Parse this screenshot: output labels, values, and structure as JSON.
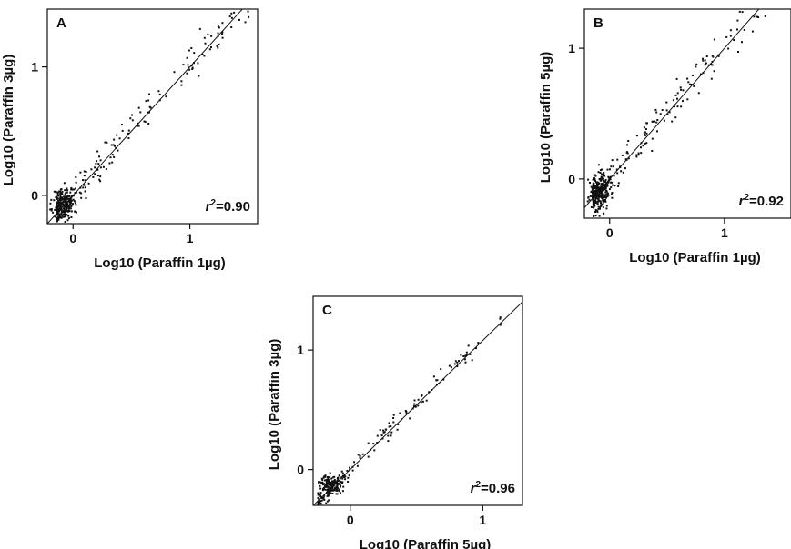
{
  "chart_data": [
    {
      "type": "scatter",
      "panel": "A",
      "xlabel": "Log10 (Paraffin 1µg)",
      "ylabel": "Log10 (Paraffin 3µg)",
      "xlim": [
        -0.22,
        1.58
      ],
      "ylim": [
        -0.22,
        1.45
      ],
      "xticks": [
        0,
        1
      ],
      "yticks": [
        0,
        1
      ],
      "r2_prefix": "r",
      "r2_sup": "2",
      "r2_value": "=0.90",
      "line": {
        "slope": 1,
        "intercept": 0
      },
      "seed": 11,
      "cluster": {
        "cx": -0.09,
        "cy": -0.06,
        "sx": 0.045,
        "sy": 0.06,
        "n": 210
      },
      "spread": {
        "n": 210,
        "xmin": -0.15,
        "xmax": 1.5,
        "noise": 0.07,
        "bias": 0.05
      }
    },
    {
      "type": "scatter",
      "panel": "B",
      "xlabel": "Log10 (Paraffin 1µg)",
      "ylabel": "Log10 (Paraffin 5µg)",
      "xlim": [
        -0.22,
        1.58
      ],
      "ylim": [
        -0.3,
        1.3
      ],
      "xticks": [
        0,
        1
      ],
      "yticks": [
        0,
        1
      ],
      "r2_prefix": "r",
      "r2_sup": "2",
      "r2_value": "=0.92",
      "line": {
        "slope": 1,
        "intercept": 0
      },
      "seed": 23,
      "cluster": {
        "cx": -0.1,
        "cy": -0.1,
        "sx": 0.045,
        "sy": 0.07,
        "n": 220
      },
      "spread": {
        "n": 230,
        "xmin": -0.15,
        "xmax": 1.55,
        "noise": 0.07,
        "bias": 0.05
      }
    },
    {
      "type": "scatter",
      "panel": "C",
      "xlabel": "Log10 (Paraffin 5µg)",
      "ylabel": "Log10 (Paraffin 3µg)",
      "xlim": [
        -0.28,
        1.3
      ],
      "ylim": [
        -0.3,
        1.45
      ],
      "xticks": [
        0,
        1
      ],
      "yticks": [
        0,
        1
      ],
      "r2_prefix": "r",
      "r2_sup": "2",
      "r2_value": "=0.96",
      "line": {
        "slope": 1.08,
        "intercept": 0
      },
      "seed": 37,
      "cluster": {
        "cx": -0.15,
        "cy": -0.12,
        "sx": 0.04,
        "sy": 0.04,
        "n": 130
      },
      "spread": {
        "n": 170,
        "xmin": -0.25,
        "xmax": 1.15,
        "noise": 0.045,
        "bias": 0.03
      }
    }
  ]
}
